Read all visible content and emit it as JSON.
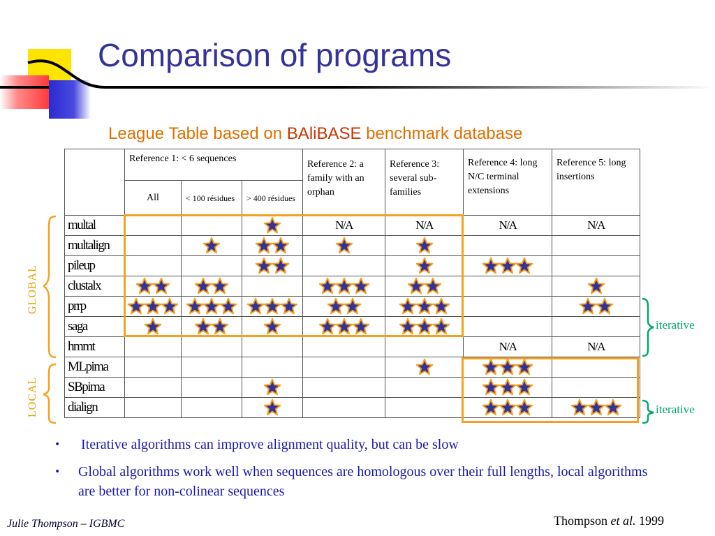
{
  "slide": {
    "title": "Comparison of programs",
    "subtitle_pre": "League Table based on ",
    "subtitle_strong": "BAliBASE",
    "subtitle_post": " benchmark database"
  },
  "table": {
    "ref1_header": "Reference 1:   < 6  sequences",
    "ref1_sub": [
      "All",
      "< 100 résidues",
      "> 400 résidues"
    ],
    "ref2_header": "Reference 2: a family with an orphan",
    "ref3_header": "Reference 3: several sub-families",
    "ref4_header": "Reference 4: long N/C terminal extensions",
    "ref5_header": "Reference 5: long insertions",
    "rows": [
      {
        "name": "multal",
        "cells": [
          0,
          0,
          1,
          "N/A",
          "N/A",
          "N/A",
          "N/A"
        ]
      },
      {
        "name": "multalign",
        "cells": [
          0,
          1,
          2,
          1,
          1,
          0,
          0
        ]
      },
      {
        "name": "pileup",
        "cells": [
          0,
          0,
          2,
          0,
          1,
          3,
          0
        ]
      },
      {
        "name": "clustalx",
        "cells": [
          2,
          2,
          0,
          3,
          2,
          0,
          1
        ]
      },
      {
        "name": "prrp",
        "cells": [
          3,
          3,
          3,
          2,
          3,
          0,
          2
        ]
      },
      {
        "name": "saga",
        "cells": [
          1,
          2,
          1,
          3,
          3,
          0,
          0
        ]
      },
      {
        "name": "hmmt",
        "cells": [
          0,
          0,
          0,
          0,
          0,
          "N/A",
          "N/A"
        ]
      },
      {
        "name": "MLpima",
        "cells": [
          0,
          0,
          0,
          0,
          1,
          3,
          0
        ]
      },
      {
        "name": "SBpima",
        "cells": [
          0,
          0,
          1,
          0,
          0,
          3,
          0
        ]
      },
      {
        "name": "dialign",
        "cells": [
          0,
          0,
          1,
          0,
          0,
          3,
          3
        ]
      }
    ]
  },
  "labels": {
    "global": "GLOBAL",
    "local": "LOCAL",
    "iterative_1": "iterative",
    "iterative_2": "iterative"
  },
  "bullets": [
    "Iterative algorithms can improve alignment quality, but can be slow",
    "Global algorithms work well when sequences are homologous over their full lengths, local algorithms are better for non-colinear sequences"
  ],
  "footer": {
    "author": "Julie Thompson – IGBMC",
    "citation_pre": "Thompson ",
    "citation_em": "et al.",
    "citation_post": " 1999"
  },
  "colors": {
    "title": "#333399",
    "subtitle": "#e07000",
    "star_fill": "#333399",
    "star_outline": "#f5a020",
    "box": "#f5a020",
    "iterative": "#00a86b",
    "bullet_text": "#1a1aaa"
  },
  "icons": {
    "rating": "star-icon",
    "bullet": "bullet-dot-icon"
  }
}
